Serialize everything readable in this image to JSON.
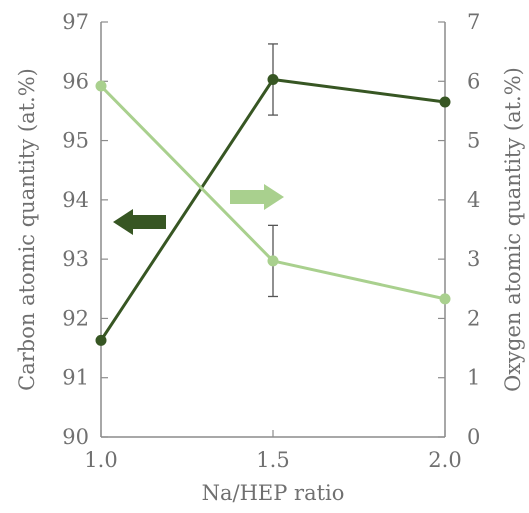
{
  "chart_data": {
    "type": "line",
    "x": [
      1.0,
      1.5,
      2.0
    ],
    "x_tick_labels": [
      "1.0",
      "1.5",
      "2.0"
    ],
    "xlim": [
      1.0,
      2.0
    ],
    "xlabel": "Na/HEP ratio",
    "y_left": {
      "label": "Carbon atomic quantity (at.%)",
      "lim": [
        90,
        97
      ],
      "ticks": [
        "90",
        "91",
        "92",
        "93",
        "94",
        "95",
        "96",
        "97"
      ]
    },
    "y_right": {
      "label": "Oxygen atomic quantity (at.%)",
      "lim": [
        0,
        7
      ],
      "ticks": [
        "0",
        "1",
        "2",
        "3",
        "4",
        "5",
        "6",
        "7"
      ]
    },
    "series": [
      {
        "axis": "left",
        "color": "#375623",
        "values": [
          91.63,
          96.03,
          95.65
        ],
        "error": [
          null,
          0.6,
          null
        ]
      },
      {
        "axis": "right",
        "color": "#a9d08e",
        "values": [
          5.92,
          2.97,
          2.33
        ],
        "error": [
          null,
          0.6,
          null
        ]
      }
    ],
    "annotations": [
      {
        "type": "arrow",
        "direction": "left",
        "color": "#375623",
        "points_to": "left-axis"
      },
      {
        "type": "arrow",
        "direction": "right",
        "color": "#a9d08e",
        "points_to": "right-axis"
      }
    ],
    "grid": false,
    "legend": "none"
  }
}
